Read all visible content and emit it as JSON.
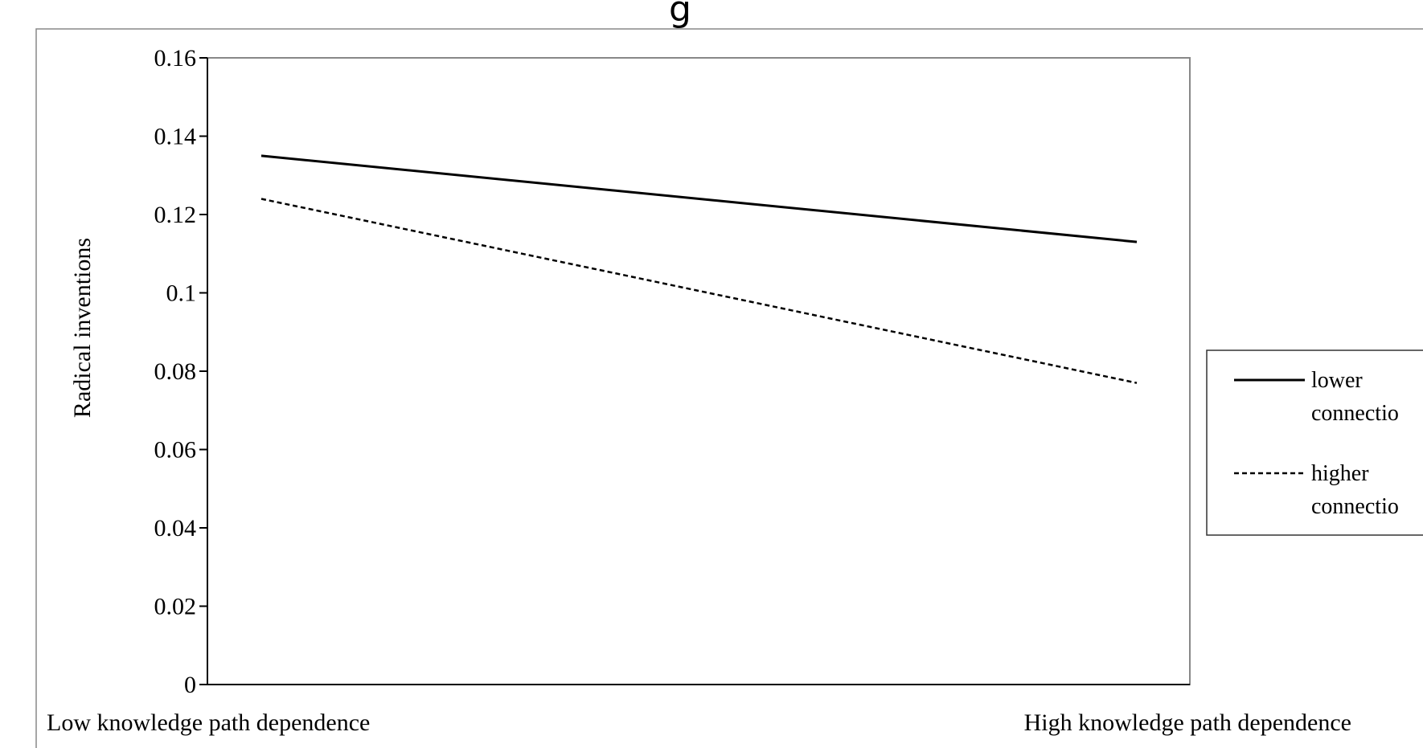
{
  "top_fragment": "g",
  "chart_data": {
    "type": "line",
    "title": "",
    "xlabel": "",
    "ylabel": "Radical inventions",
    "categories": [
      "Low knowledge path dependence",
      "High knowledge path dependence"
    ],
    "ylim": [
      0,
      0.16
    ],
    "yticks": [
      "0",
      "0.02",
      "0.04",
      "0.06",
      "0.08",
      "0.1",
      "0.12",
      "0.14",
      "0.16"
    ],
    "yticks_values": [
      0,
      0.02,
      0.04,
      0.06,
      0.08,
      0.1,
      0.12,
      0.14,
      0.16
    ],
    "grid": false,
    "legend_position": "right",
    "series": [
      {
        "name_lines": [
          "lower",
          "connectio"
        ],
        "style": "solid",
        "values": [
          0.135,
          0.113
        ]
      },
      {
        "name_lines": [
          "higher",
          "connectio"
        ],
        "style": "dashed",
        "values": [
          0.124,
          0.077
        ]
      }
    ]
  }
}
